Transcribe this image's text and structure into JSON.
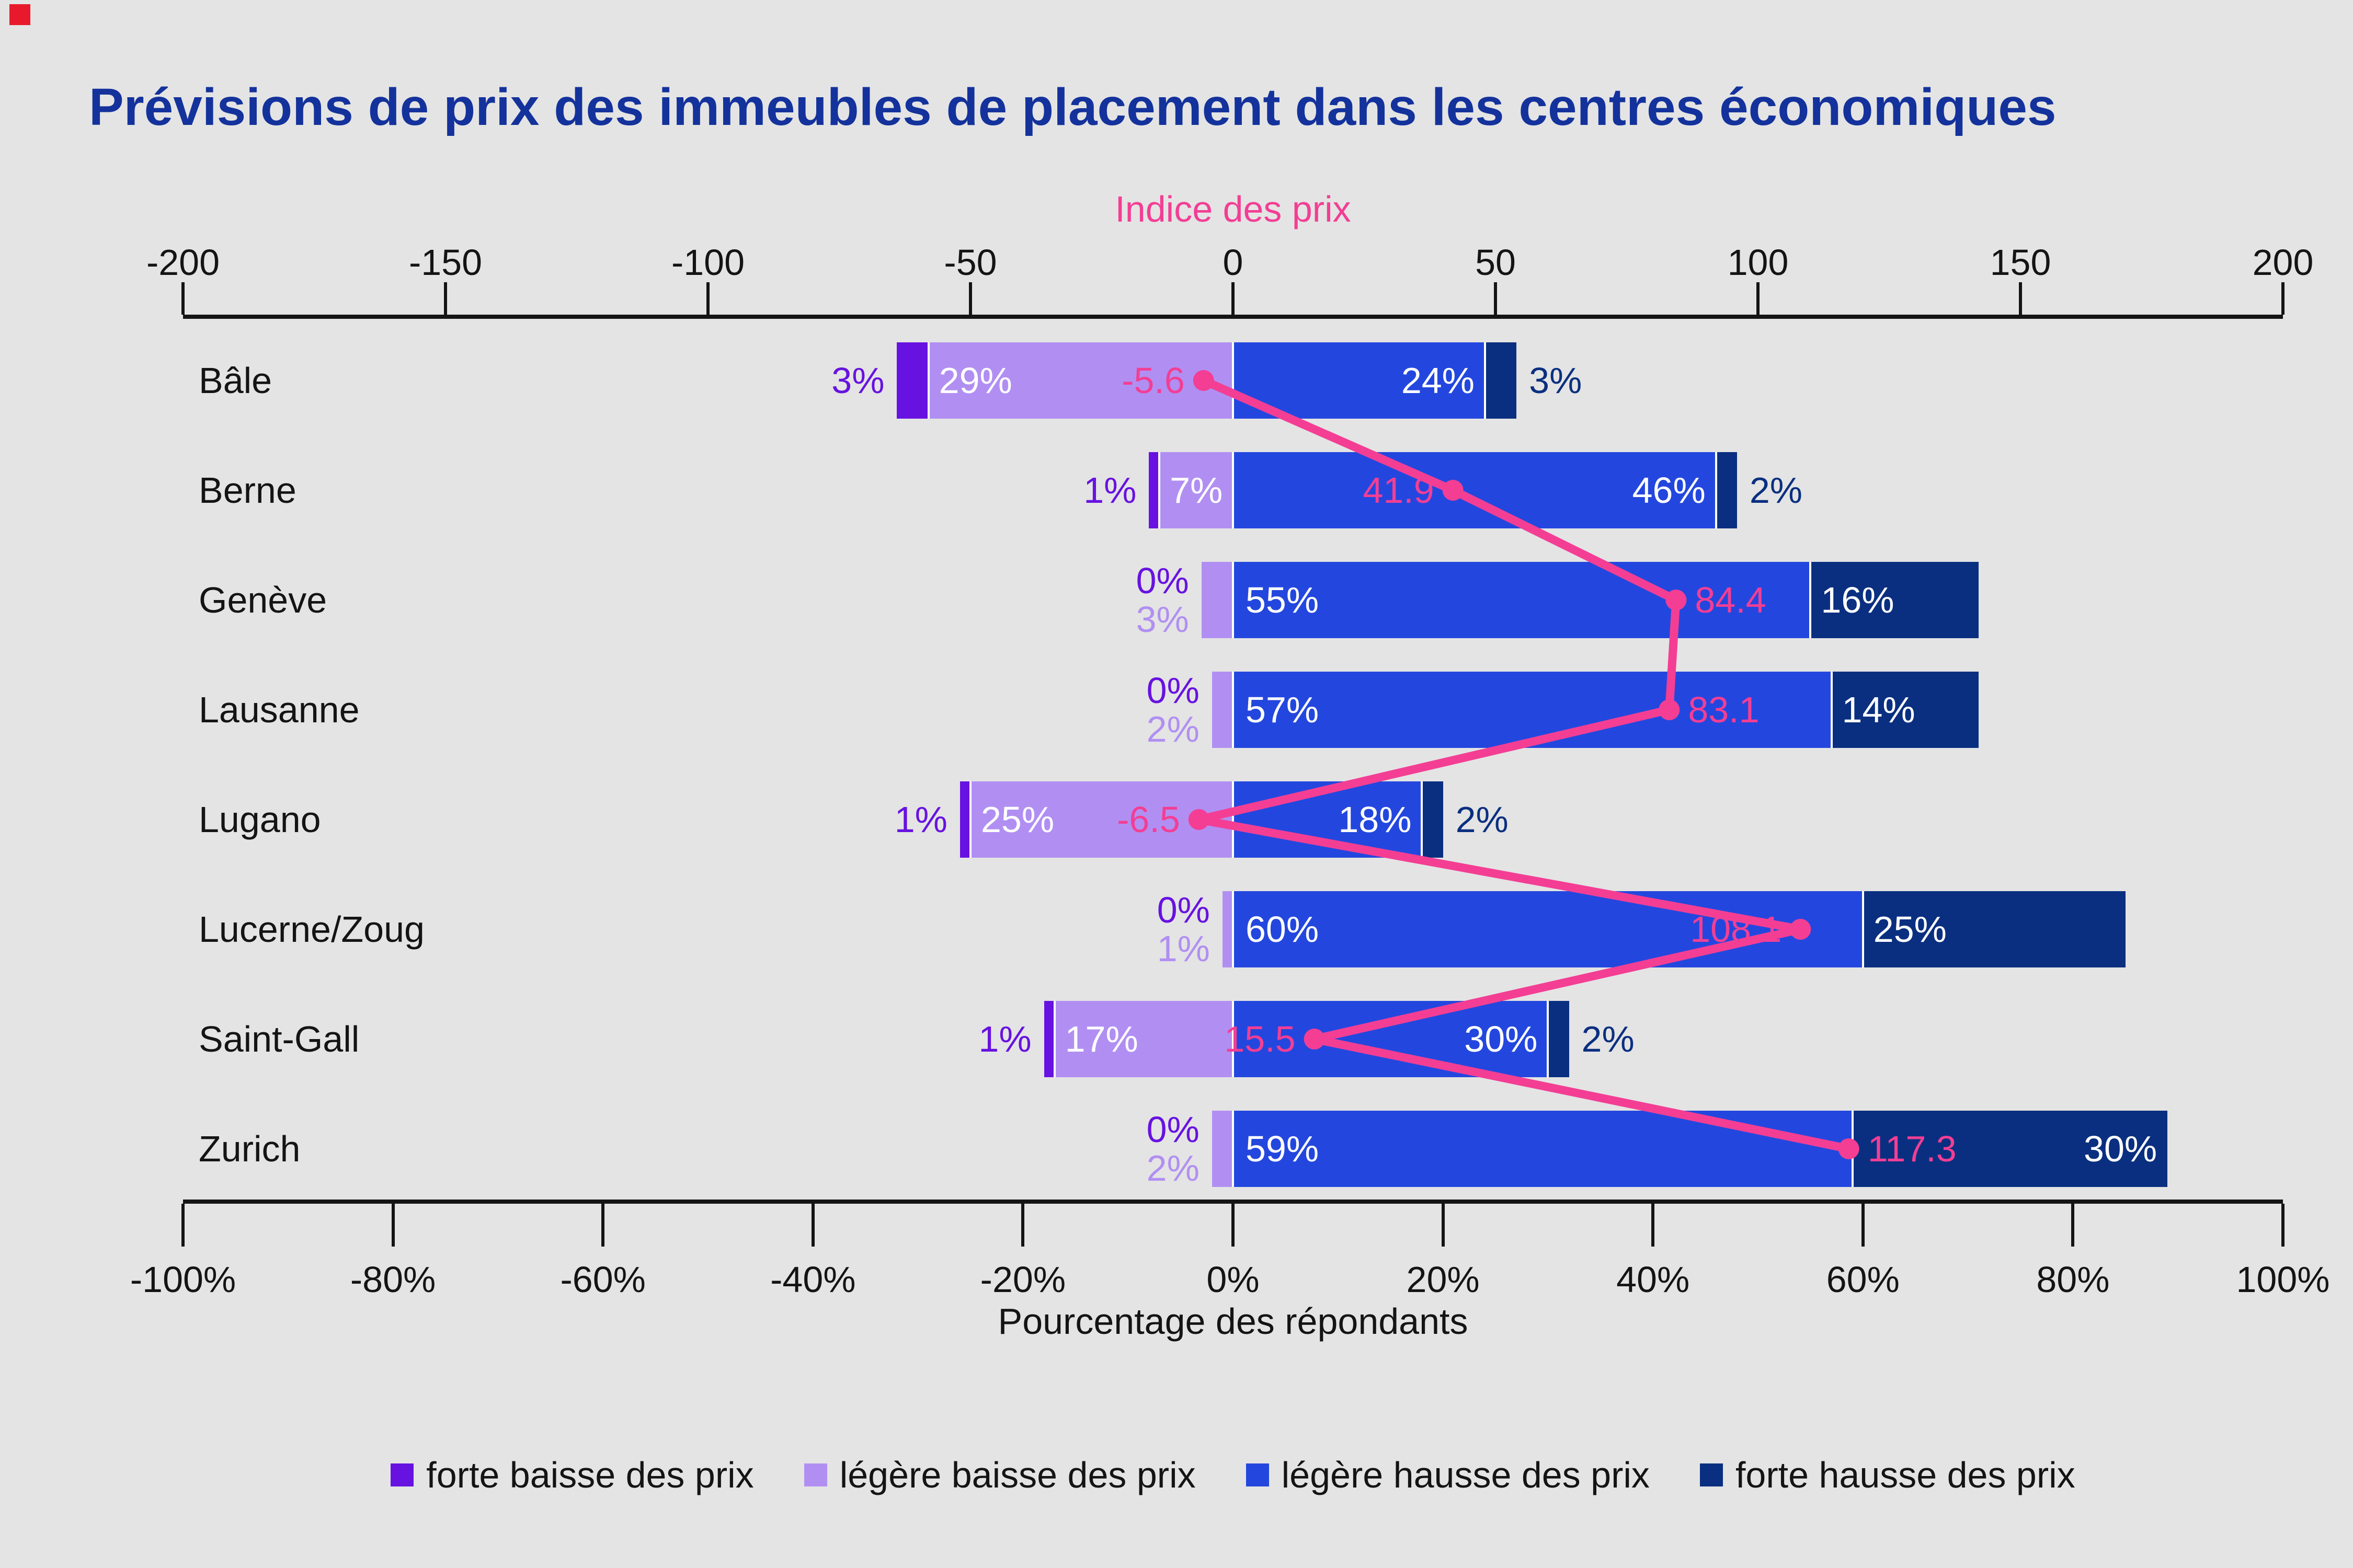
{
  "page": {
    "background_color": "#e4e4e4",
    "marker_color": "#e8192c",
    "text_color": "#141414"
  },
  "title": {
    "text": "Prévisions de prix des immeubles de placement dans les centres économiques",
    "color": "#14329c"
  },
  "chart_data": {
    "type": "bar",
    "subtype": "horizontal-diverging-stacked-with-line-overlay",
    "grid": false,
    "legend_position": "bottom",
    "categories": [
      "Bâle",
      "Berne",
      "Genève",
      "Lausanne",
      "Lugano",
      "Lucerne/Zoug",
      "Saint-Gall",
      "Zurich"
    ],
    "series": [
      {
        "name": "forte baisse des prix",
        "color": "#6712e0",
        "side": "negative",
        "values": [
          3,
          1,
          0,
          0,
          1,
          0,
          1,
          0
        ]
      },
      {
        "name": "légère baisse des prix",
        "color": "#b18ff2",
        "side": "negative",
        "values": [
          29,
          7,
          3,
          2,
          25,
          1,
          17,
          2
        ]
      },
      {
        "name": "légère hausse des prix",
        "color": "#2347de",
        "side": "positive",
        "values": [
          24,
          46,
          55,
          57,
          18,
          60,
          30,
          59
        ]
      },
      {
        "name": "forte hausse des prix",
        "color": "#0a2f80",
        "side": "positive",
        "values": [
          3,
          2,
          16,
          14,
          2,
          25,
          2,
          30
        ]
      }
    ],
    "line_series": {
      "name": "Indice des prix",
      "color": "#f33e94",
      "values": [
        -5.6,
        41.9,
        84.4,
        83.1,
        -6.5,
        108.1,
        15.5,
        117.3
      ],
      "labels": [
        "-5.6",
        "41.9",
        "84.4",
        "83.1",
        "-6.5",
        "108.1",
        "15.5",
        "117.3"
      ]
    },
    "rows": [
      {
        "city": "Bâle",
        "fb": 3,
        "lb": 29,
        "lh": 24,
        "fh": 3,
        "idx": -5.6,
        "idx_label": "-5.6",
        "idx_side": "left",
        "fb_pos": "outside",
        "lb_pos": "inside-left",
        "lh_pos": "inside-right",
        "fh_pos": "outside"
      },
      {
        "city": "Berne",
        "fb": 1,
        "lb": 7,
        "lh": 46,
        "fh": 2,
        "idx": 41.9,
        "idx_label": "41.9",
        "idx_side": "left",
        "fb_pos": "outside",
        "lb_pos": "inside-center",
        "lh_pos": "inside-right",
        "fh_pos": "outside"
      },
      {
        "city": "Genève",
        "fb": 0,
        "lb": 3,
        "lh": 55,
        "fh": 16,
        "idx": 84.4,
        "idx_label": "84.4",
        "idx_side": "right",
        "fb_pos": "stacked",
        "lb_pos": "stacked",
        "lh_pos": "inside-left",
        "fh_pos": "inside-left"
      },
      {
        "city": "Lausanne",
        "fb": 0,
        "lb": 2,
        "lh": 57,
        "fh": 14,
        "idx": 83.1,
        "idx_label": "83.1",
        "idx_side": "right",
        "fb_pos": "stacked",
        "lb_pos": "stacked",
        "lh_pos": "inside-left",
        "fh_pos": "inside-left"
      },
      {
        "city": "Lugano",
        "fb": 1,
        "lb": 25,
        "lh": 18,
        "fh": 2,
        "idx": -6.5,
        "idx_label": "-6.5",
        "idx_side": "left",
        "fb_pos": "outside",
        "lb_pos": "inside-left",
        "lh_pos": "inside-right",
        "fh_pos": "outside"
      },
      {
        "city": "Lucerne/Zoug",
        "fb": 0,
        "lb": 1,
        "lh": 60,
        "fh": 25,
        "idx": 108.1,
        "idx_label": "108.1",
        "idx_side": "left",
        "fb_pos": "stacked",
        "lb_pos": "stacked",
        "lh_pos": "inside-left",
        "fh_pos": "inside-left"
      },
      {
        "city": "Saint-Gall",
        "fb": 1,
        "lb": 17,
        "lh": 30,
        "fh": 2,
        "idx": 15.5,
        "idx_label": "15.5",
        "idx_side": "left",
        "fb_pos": "outside",
        "lb_pos": "inside-left",
        "lh_pos": "inside-right",
        "fh_pos": "outside"
      },
      {
        "city": "Zurich",
        "fb": 0,
        "lb": 2,
        "lh": 59,
        "fh": 30,
        "idx": 117.3,
        "idx_label": "117.3",
        "idx_side": "right",
        "fb_pos": "stacked",
        "lb_pos": "stacked",
        "lh_pos": "inside-left",
        "fh_pos": "inside-right"
      }
    ],
    "index_axis": {
      "title": "Indice des prix",
      "position": "top",
      "min": -200,
      "max": 200,
      "step": 50,
      "ticks": [
        -200,
        -150,
        -100,
        -50,
        0,
        50,
        100,
        150,
        200
      ],
      "tick_labels": [
        "-200",
        "-150",
        "-100",
        "-50",
        "0",
        "50",
        "100",
        "150",
        "200"
      ]
    },
    "percent_axis": {
      "title": "Pourcentage des répondants",
      "position": "bottom",
      "min": -100,
      "max": 100,
      "step": 20,
      "ticks": [
        -100,
        -80,
        -60,
        -40,
        -20,
        0,
        20,
        40,
        60,
        80,
        100
      ],
      "tick_labels": [
        "-100%",
        "-80%",
        "-60%",
        "-40%",
        "-20%",
        "0%",
        "20%",
        "40%",
        "60%",
        "80%",
        "100%"
      ]
    },
    "legend": {
      "items": [
        "forte baisse des prix",
        "légère baisse des prix",
        "légère hausse des prix",
        "forte hausse des prix"
      ]
    }
  }
}
